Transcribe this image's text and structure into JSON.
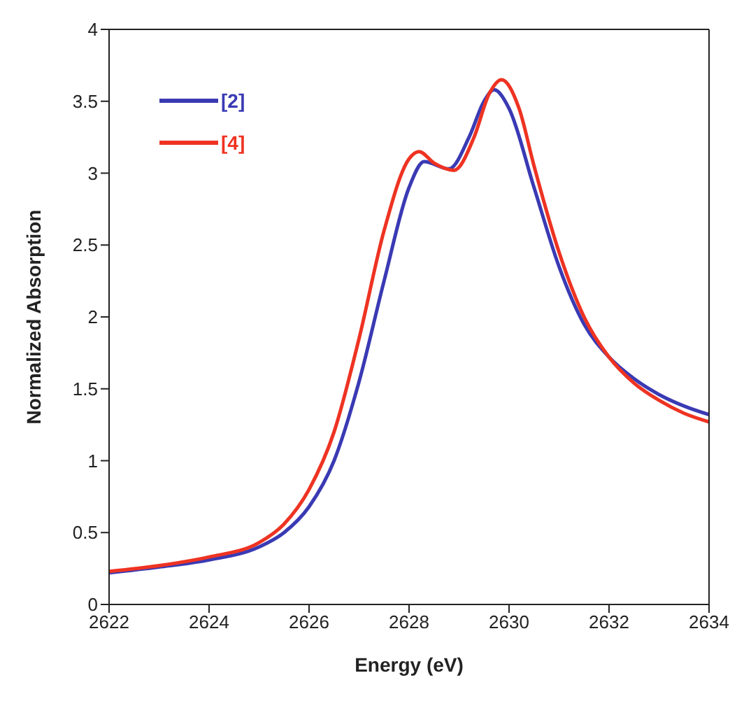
{
  "chart_data": {
    "type": "line",
    "xlabel": "Energy (eV)",
    "ylabel": "Normalized Absorption",
    "xlim": [
      2622,
      2634
    ],
    "xticks": [
      2622,
      2624,
      2626,
      2628,
      2630,
      2632,
      2634
    ],
    "ylim": [
      0,
      4
    ],
    "yticks": [
      0,
      0.5,
      1,
      1.5,
      2,
      2.5,
      3,
      3.5,
      4
    ],
    "legend": "top left",
    "marker": "none",
    "line_style": "solid",
    "series": [
      {
        "name": "[2]",
        "color": "#3a3ab4",
        "x": [
          2622,
          2623,
          2624,
          2625,
          2625.5,
          2626,
          2626.5,
          2627,
          2627.5,
          2628,
          2628.3,
          2628.8,
          2629.2,
          2629.5,
          2629.7,
          2630,
          2630.5,
          2631,
          2631.5,
          2632,
          2632.5,
          2633,
          2633.5,
          2634
        ],
        "values": [
          0.22,
          0.26,
          0.31,
          0.4,
          0.5,
          0.68,
          1.0,
          1.55,
          2.25,
          2.9,
          3.08,
          3.03,
          3.25,
          3.5,
          3.58,
          3.45,
          2.9,
          2.35,
          1.95,
          1.72,
          1.57,
          1.46,
          1.38,
          1.32
        ]
      },
      {
        "name": "[4]",
        "color": "#ee3322",
        "x": [
          2622,
          2623,
          2624,
          2625,
          2625.5,
          2626,
          2626.5,
          2627,
          2627.5,
          2628,
          2628.2,
          2628.5,
          2628.9,
          2629.3,
          2629.6,
          2629.85,
          2630.2,
          2630.5,
          2631,
          2631.5,
          2632,
          2632.5,
          2633,
          2633.5,
          2634
        ],
        "values": [
          0.23,
          0.27,
          0.33,
          0.43,
          0.56,
          0.8,
          1.2,
          1.85,
          2.6,
          3.1,
          3.15,
          3.07,
          3.02,
          3.25,
          3.55,
          3.65,
          3.45,
          3.05,
          2.45,
          2.0,
          1.72,
          1.54,
          1.42,
          1.33,
          1.27
        ]
      }
    ]
  }
}
